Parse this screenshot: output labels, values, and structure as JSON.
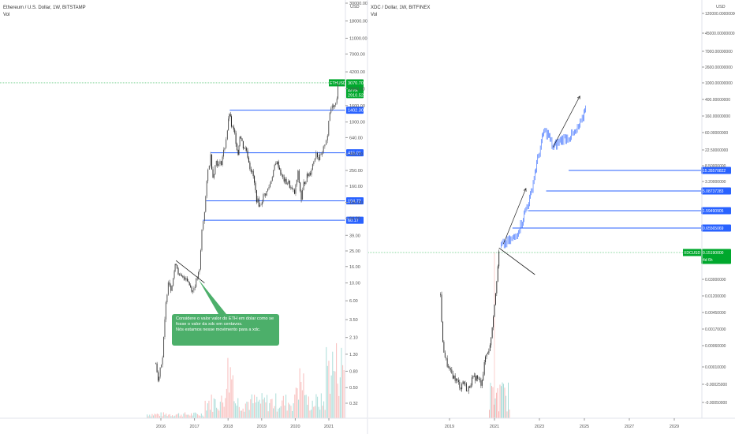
{
  "chart_data": [
    {
      "type": "candlestick",
      "title": "Ethereum / U.S. Dollar, 1W, BITSTAMP",
      "volume_label": "Vol",
      "price_axis": {
        "scale": "log",
        "unit": "USD",
        "ticks": [
          "30000.00",
          "18000.00",
          "11000.00",
          "7000.00",
          "4200.00",
          "2600.00",
          "1600.00",
          "1000.00",
          "640.00",
          "400.00",
          "250.00",
          "160.00",
          "100.00",
          "64.00",
          "39.00",
          "25.00",
          "16.00",
          "10.00",
          "6.00",
          "3.50",
          "2.10",
          "1.30",
          "0.80",
          "0.50",
          "0.32"
        ]
      },
      "time_axis": {
        "ticks": [
          "2016",
          "2017",
          "2018",
          "2019",
          "2020",
          "2021"
        ]
      },
      "price_series": [
        {
          "t": 2015.85,
          "p": 1.0
        },
        {
          "t": 2015.92,
          "p": 0.6
        },
        {
          "t": 2015.98,
          "p": 0.9
        },
        {
          "t": 2016.05,
          "p": 1.2
        },
        {
          "t": 2016.15,
          "p": 5.5
        },
        {
          "t": 2016.22,
          "p": 11.0
        },
        {
          "t": 2016.3,
          "p": 8.5
        },
        {
          "t": 2016.4,
          "p": 14.0
        },
        {
          "t": 2016.45,
          "p": 18.0
        },
        {
          "t": 2016.55,
          "p": 12.0
        },
        {
          "t": 2016.65,
          "p": 11.5
        },
        {
          "t": 2016.75,
          "p": 12.0
        },
        {
          "t": 2016.85,
          "p": 9.5
        },
        {
          "t": 2016.95,
          "p": 8.0
        },
        {
          "t": 2017.05,
          "p": 10.5
        },
        {
          "t": 2017.15,
          "p": 14.0
        },
        {
          "t": 2017.22,
          "p": 45.0
        },
        {
          "t": 2017.3,
          "p": 80.0
        },
        {
          "t": 2017.4,
          "p": 250.0
        },
        {
          "t": 2017.48,
          "p": 380.0
        },
        {
          "t": 2017.55,
          "p": 210.0
        },
        {
          "t": 2017.65,
          "p": 330.0
        },
        {
          "t": 2017.72,
          "p": 290.0
        },
        {
          "t": 2017.8,
          "p": 320.0
        },
        {
          "t": 2017.9,
          "p": 500.0
        },
        {
          "t": 2017.98,
          "p": 800.0
        },
        {
          "t": 2018.04,
          "p": 1300.0
        },
        {
          "t": 2018.1,
          "p": 900.0
        },
        {
          "t": 2018.2,
          "p": 700.0
        },
        {
          "t": 2018.3,
          "p": 400.0
        },
        {
          "t": 2018.35,
          "p": 700.0
        },
        {
          "t": 2018.45,
          "p": 500.0
        },
        {
          "t": 2018.55,
          "p": 450.0
        },
        {
          "t": 2018.65,
          "p": 280.0
        },
        {
          "t": 2018.75,
          "p": 210.0
        },
        {
          "t": 2018.85,
          "p": 110.0
        },
        {
          "t": 2018.95,
          "p": 90.0
        },
        {
          "t": 2019.05,
          "p": 120.0
        },
        {
          "t": 2019.15,
          "p": 135.0
        },
        {
          "t": 2019.25,
          "p": 170.0
        },
        {
          "t": 2019.35,
          "p": 250.0
        },
        {
          "t": 2019.45,
          "p": 320.0
        },
        {
          "t": 2019.5,
          "p": 290.0
        },
        {
          "t": 2019.6,
          "p": 210.0
        },
        {
          "t": 2019.7,
          "p": 180.0
        },
        {
          "t": 2019.8,
          "p": 175.0
        },
        {
          "t": 2019.9,
          "p": 140.0
        },
        {
          "t": 2019.98,
          "p": 130.0
        },
        {
          "t": 2020.08,
          "p": 230.0
        },
        {
          "t": 2020.18,
          "p": 110.0
        },
        {
          "t": 2020.25,
          "p": 170.0
        },
        {
          "t": 2020.35,
          "p": 210.0
        },
        {
          "t": 2020.45,
          "p": 240.0
        },
        {
          "t": 2020.55,
          "p": 330.0
        },
        {
          "t": 2020.62,
          "p": 430.0
        },
        {
          "t": 2020.7,
          "p": 350.0
        },
        {
          "t": 2020.8,
          "p": 390.0
        },
        {
          "t": 2020.88,
          "p": 550.0
        },
        {
          "t": 2020.96,
          "p": 700.0
        },
        {
          "t": 2021.03,
          "p": 1300.0
        },
        {
          "t": 2021.1,
          "p": 1700.0
        },
        {
          "t": 2021.17,
          "p": 1600.0
        },
        {
          "t": 2021.24,
          "p": 2100.0
        },
        {
          "t": 2021.3,
          "p": 3500.0
        }
      ],
      "horizontal_levels": [
        {
          "label": "1402.30",
          "value": 1402.3,
          "from": 2018.05
        },
        {
          "label": "415.01",
          "value": 415.01,
          "from": 2017.48
        },
        {
          "label": "104.72",
          "value": 104.72,
          "from": 2017.35
        },
        {
          "label": "60.17",
          "value": 60.17,
          "from": 2017.25
        }
      ],
      "current_price": {
        "label": "ETHUSD",
        "value_label": "3070.70",
        "value": 3070.7,
        "countdown": "4d 6h"
      },
      "secondary_label": {
        "value_label": "2910.52",
        "value": 2910.52
      },
      "trendline": {
        "from": {
          "t": 2016.45,
          "p": 19.0
        },
        "to": {
          "t": 2017.3,
          "p": 10.0
        }
      },
      "annotation": {
        "lines": [
          "Considere o valor valor do ETH em dolar como se",
          "fosse o valor da xdc em centavos.",
          "Nós estamos nesse movimento para a xdc."
        ],
        "points_to": {
          "t": 2017.12,
          "p": 11.0
        }
      },
      "colors": {
        "up": "#26a69a",
        "down": "#ef5350",
        "level": "#2962ff",
        "price_tag": "#00a82d",
        "callout": "#4caf6a"
      }
    },
    {
      "type": "line",
      "title": "XDC / Dollar, 1W, BITFINEX",
      "volume_label": "Vol",
      "price_axis": {
        "unit": "USD",
        "ticks": [
          "120000.00000000",
          "45000.00000000",
          "7000.00000000",
          "2600.00000000",
          "1000.00000000",
          "400.00000000",
          "160.00000000",
          "60.00000000",
          "22.50000000",
          "8.50000000",
          "3.20000000",
          "0.03000000",
          "0.01200000",
          "0.00450000",
          "0.00170000",
          "0.00060000",
          "0.00010000",
          "-0.00025000",
          "-0.00050000"
        ]
      },
      "time_axis": {
        "ticks": [
          "2019",
          "2021",
          "2023",
          "2025",
          "2027",
          "2029"
        ]
      },
      "price_series": [
        {
          "t": 2018.6,
          "y": 0.6
        },
        {
          "t": 2018.7,
          "y": 0.36
        },
        {
          "t": 2018.8,
          "y": 0.3
        },
        {
          "t": 2018.9,
          "y": 0.26
        },
        {
          "t": 2019.0,
          "y": 0.23
        },
        {
          "t": 2019.2,
          "y": 0.2
        },
        {
          "t": 2019.4,
          "y": 0.17
        },
        {
          "t": 2019.5,
          "y": 0.15
        },
        {
          "t": 2019.6,
          "y": 0.18
        },
        {
          "t": 2019.7,
          "y": 0.16
        },
        {
          "t": 2019.8,
          "y": 0.13
        },
        {
          "t": 2020.0,
          "y": 0.19
        },
        {
          "t": 2020.2,
          "y": 0.2
        },
        {
          "t": 2020.4,
          "y": 0.17
        },
        {
          "t": 2020.5,
          "y": 0.22
        },
        {
          "t": 2020.6,
          "y": 0.3
        },
        {
          "t": 2020.8,
          "y": 0.35
        },
        {
          "t": 2020.9,
          "y": 0.45
        },
        {
          "t": 2021.0,
          "y": 0.56
        },
        {
          "t": 2021.1,
          "y": 0.68
        },
        {
          "t": 2021.2,
          "y": 0.8
        },
        {
          "t": 2021.25,
          "y": 0.83
        }
      ],
      "projection": [
        {
          "t": 2021.3,
          "y": 0.84
        },
        {
          "t": 2021.6,
          "y": 0.86
        },
        {
          "t": 2021.9,
          "y": 0.88
        },
        {
          "t": 2022.2,
          "y": 0.95
        },
        {
          "t": 2022.4,
          "y": 1.02
        },
        {
          "t": 2022.6,
          "y": 1.08
        },
        {
          "t": 2022.8,
          "y": 1.2
        },
        {
          "t": 2023.0,
          "y": 1.3
        },
        {
          "t": 2023.2,
          "y": 1.4
        },
        {
          "t": 2023.4,
          "y": 1.38
        },
        {
          "t": 2023.6,
          "y": 1.32
        },
        {
          "t": 2023.8,
          "y": 1.34
        },
        {
          "t": 2024.0,
          "y": 1.36
        },
        {
          "t": 2024.3,
          "y": 1.37
        },
        {
          "t": 2024.6,
          "y": 1.39
        },
        {
          "t": 2024.9,
          "y": 1.45
        },
        {
          "t": 2025.1,
          "y": 1.55
        }
      ],
      "horizontal_levels": [
        {
          "label": "15.35570822",
          "y": 1.54,
          "from": 2024.3
        },
        {
          "label": "5.08737283",
          "y": 1.36,
          "from": 2023.3
        },
        {
          "label": "1.59490905",
          "y": 1.18,
          "from": 2022.5
        },
        {
          "label": "0.65565069",
          "y": 1.03,
          "from": 2021.8
        }
      ],
      "current_price": {
        "label": "XDCUSD",
        "value_label": "0.15190000",
        "y": 0.83,
        "countdown": "4d 6h"
      },
      "trendline": {
        "from": {
          "t": 2021.2,
          "y": 0.83
        },
        "to": {
          "t": 2022.8,
          "y": 0.7
        }
      },
      "arrows": [
        {
          "from": {
            "t": 2021.4,
            "y": 0.85
          },
          "to": {
            "t": 2022.4,
            "y": 1.12
          }
        },
        {
          "from": {
            "t": 2023.6,
            "y": 1.32
          },
          "to": {
            "t": 2024.8,
            "y": 1.57
          }
        }
      ],
      "colors": {
        "line": "#2962ff",
        "level": "#2962ff",
        "price_tag": "#00a82d",
        "price": "#000000"
      }
    }
  ]
}
